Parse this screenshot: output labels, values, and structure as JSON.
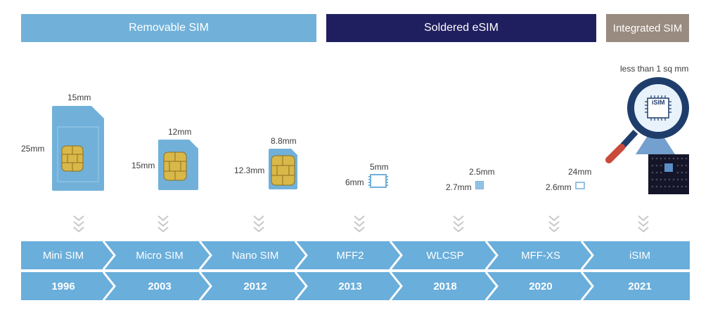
{
  "bands": {
    "removable": "Removable SIM",
    "soldered": "Soldered eSIM",
    "integrated": "Integrated SIM"
  },
  "sizes": {
    "mini": {
      "w": "15mm",
      "h": "25mm"
    },
    "micro": {
      "w": "12mm",
      "h": "15mm"
    },
    "nano": {
      "w": "8.8mm",
      "h": "12.3mm"
    },
    "mff2": {
      "w": "5mm",
      "h": "6mm"
    },
    "wlcsp": {
      "w": "2.5mm",
      "h": "2.7mm"
    },
    "mffxs": {
      "w": "24mm",
      "h": "2.6mm"
    },
    "isim": {
      "note": "less than 1 sq mm",
      "chip_label": "iSIM"
    }
  },
  "timeline": [
    {
      "name": "Mini SIM",
      "year": "1996"
    },
    {
      "name": "Micro SIM",
      "year": "2003"
    },
    {
      "name": "Nano SIM",
      "year": "2012"
    },
    {
      "name": "MFF2",
      "year": "2013"
    },
    {
      "name": "WLCSP",
      "year": "2018"
    },
    {
      "name": "MFF-XS",
      "year": "2020"
    },
    {
      "name": "iSIM",
      "year": "2021"
    }
  ],
  "colors": {
    "removable": "#71b1d9",
    "soldered": "#1f1f60",
    "integrated": "#9a8b80",
    "timeline": "#6aaedb",
    "chip": "#d9b84a"
  }
}
